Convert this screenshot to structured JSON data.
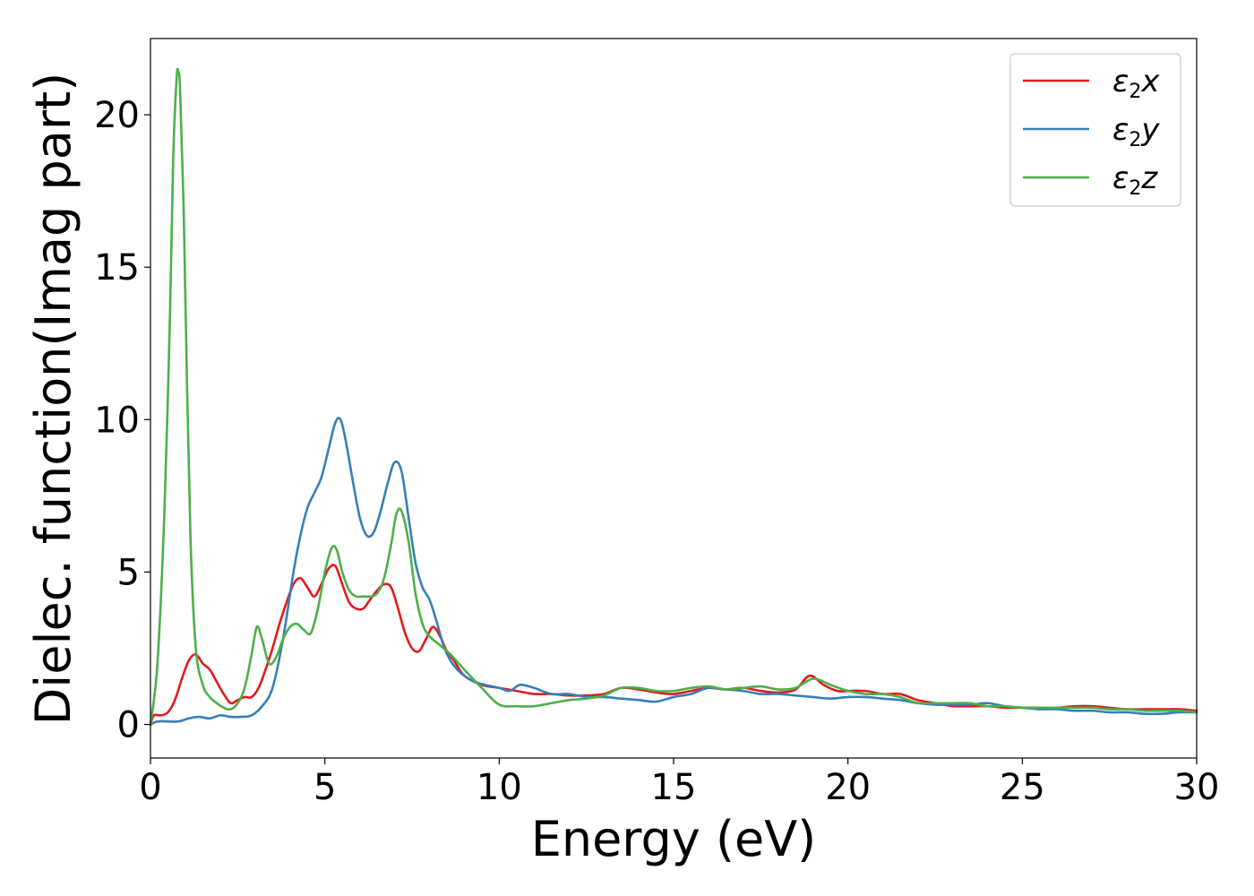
{
  "chart_data": {
    "type": "line",
    "xlabel": "Energy (eV)",
    "ylabel": "Dielec. function(Imag part)",
    "xlim": [
      0,
      30
    ],
    "ylim": [
      -1.1,
      22.5
    ],
    "xticks": [
      0,
      5,
      10,
      15,
      20,
      25,
      30
    ],
    "yticks": [
      0,
      5,
      10,
      15,
      20
    ],
    "grid": false,
    "legend_position": "top-right",
    "series": [
      {
        "name": "ε2x",
        "legend_main": "ε",
        "legend_sub": "2",
        "legend_suffix": "x",
        "color": "#e31a1c",
        "x": [
          0,
          0.1,
          0.3,
          0.5,
          0.7,
          0.9,
          1.1,
          1.3,
          1.5,
          1.7,
          1.9,
          2.1,
          2.3,
          2.5,
          2.7,
          2.9,
          3.1,
          3.3,
          3.5,
          3.7,
          3.9,
          4.1,
          4.3,
          4.5,
          4.7,
          4.9,
          5.1,
          5.3,
          5.5,
          5.7,
          5.9,
          6.1,
          6.3,
          6.5,
          6.7,
          6.9,
          7.1,
          7.3,
          7.5,
          7.7,
          7.9,
          8.1,
          8.3,
          8.5,
          8.7,
          9.0,
          9.5,
          10.0,
          10.5,
          11.0,
          11.5,
          12.0,
          12.5,
          13.0,
          13.5,
          14.0,
          14.5,
          15.0,
          15.5,
          16.0,
          16.5,
          17.0,
          17.5,
          18.0,
          18.5,
          18.9,
          19.3,
          19.7,
          20.0,
          20.5,
          21.0,
          21.5,
          22.0,
          22.5,
          23.0,
          23.5,
          24.0,
          24.5,
          25.0,
          25.5,
          26.0,
          26.5,
          27.0,
          27.5,
          28.0,
          28.5,
          29.0,
          29.5,
          30.0
        ],
        "y": [
          0.0,
          0.3,
          0.3,
          0.4,
          0.8,
          1.5,
          2.1,
          2.3,
          2.0,
          1.8,
          1.4,
          1.0,
          0.7,
          0.8,
          0.9,
          0.9,
          1.2,
          1.8,
          2.5,
          3.3,
          4.0,
          4.6,
          4.8,
          4.5,
          4.2,
          4.6,
          5.1,
          5.2,
          4.6,
          4.0,
          3.8,
          3.8,
          4.1,
          4.4,
          4.6,
          4.5,
          3.8,
          3.0,
          2.5,
          2.4,
          2.8,
          3.2,
          2.9,
          2.4,
          2.1,
          1.6,
          1.3,
          1.2,
          1.1,
          1.0,
          1.0,
          0.95,
          0.95,
          1.0,
          1.2,
          1.15,
          1.05,
          1.0,
          1.1,
          1.2,
          1.15,
          1.2,
          1.1,
          1.05,
          1.15,
          1.6,
          1.3,
          1.1,
          1.1,
          1.1,
          1.0,
          1.0,
          0.8,
          0.7,
          0.6,
          0.6,
          0.6,
          0.55,
          0.55,
          0.55,
          0.55,
          0.6,
          0.6,
          0.55,
          0.5,
          0.5,
          0.5,
          0.5,
          0.45
        ]
      },
      {
        "name": "ε2y",
        "legend_main": "ε",
        "legend_sub": "2",
        "legend_suffix": "y",
        "color": "#377eb8",
        "x": [
          0,
          0.2,
          0.5,
          0.8,
          1.1,
          1.4,
          1.7,
          2.0,
          2.3,
          2.6,
          2.9,
          3.2,
          3.5,
          3.8,
          4.1,
          4.3,
          4.5,
          4.7,
          4.9,
          5.1,
          5.3,
          5.45,
          5.6,
          5.8,
          6.0,
          6.2,
          6.4,
          6.6,
          6.8,
          7.0,
          7.2,
          7.4,
          7.6,
          7.8,
          8.0,
          8.2,
          8.4,
          8.6,
          8.8,
          9.0,
          9.3,
          9.6,
          10.0,
          10.3,
          10.6,
          11.0,
          11.5,
          12.0,
          12.5,
          13.0,
          13.5,
          14.0,
          14.5,
          15.0,
          15.5,
          16.0,
          16.5,
          17.0,
          17.5,
          18.0,
          18.5,
          19.0,
          19.5,
          20.0,
          20.5,
          21.0,
          21.5,
          22.0,
          22.5,
          23.0,
          23.5,
          24.0,
          24.5,
          25.0,
          25.5,
          26.0,
          26.5,
          27.0,
          27.5,
          28.0,
          28.5,
          29.0,
          29.5,
          30.0
        ],
        "y": [
          0.0,
          0.1,
          0.1,
          0.1,
          0.2,
          0.25,
          0.2,
          0.3,
          0.25,
          0.25,
          0.3,
          0.6,
          1.2,
          2.8,
          5.0,
          6.2,
          7.1,
          7.6,
          8.1,
          9.0,
          9.9,
          10.0,
          9.3,
          8.0,
          6.8,
          6.2,
          6.3,
          7.0,
          7.9,
          8.6,
          8.3,
          6.8,
          5.3,
          4.5,
          4.1,
          3.4,
          2.6,
          2.1,
          1.8,
          1.6,
          1.4,
          1.3,
          1.2,
          1.1,
          1.3,
          1.2,
          1.0,
          1.0,
          0.9,
          0.9,
          0.85,
          0.8,
          0.75,
          0.9,
          1.0,
          1.2,
          1.15,
          1.1,
          1.0,
          1.0,
          0.95,
          0.9,
          0.85,
          0.9,
          0.9,
          0.85,
          0.8,
          0.7,
          0.65,
          0.65,
          0.65,
          0.7,
          0.6,
          0.55,
          0.5,
          0.5,
          0.45,
          0.45,
          0.4,
          0.4,
          0.35,
          0.35,
          0.4,
          0.4
        ]
      },
      {
        "name": "ε2z",
        "legend_main": "ε",
        "legend_sub": "2",
        "legend_suffix": "z",
        "color": "#4daf4a",
        "x": [
          0,
          0.2,
          0.4,
          0.55,
          0.65,
          0.75,
          0.8,
          0.85,
          0.95,
          1.05,
          1.15,
          1.3,
          1.5,
          1.7,
          1.9,
          2.1,
          2.3,
          2.5,
          2.7,
          2.9,
          3.05,
          3.2,
          3.4,
          3.6,
          3.8,
          4.0,
          4.2,
          4.4,
          4.6,
          4.8,
          5.0,
          5.2,
          5.35,
          5.5,
          5.7,
          5.9,
          6.1,
          6.3,
          6.5,
          6.7,
          6.9,
          7.05,
          7.2,
          7.4,
          7.6,
          7.8,
          8.0,
          8.3,
          8.6,
          9.0,
          9.5,
          10.0,
          10.5,
          11.0,
          11.5,
          12.0,
          12.5,
          13.0,
          13.5,
          14.0,
          14.5,
          15.0,
          15.5,
          16.0,
          16.5,
          17.0,
          17.5,
          18.0,
          18.5,
          19.0,
          19.5,
          20.0,
          20.5,
          21.0,
          21.5,
          22.0,
          22.5,
          23.0,
          23.5,
          24.0,
          24.5,
          25.0,
          25.5,
          26.0,
          26.5,
          27.0,
          27.5,
          28.0,
          28.5,
          29.0,
          29.5,
          30.0
        ],
        "y": [
          0.0,
          2.0,
          7.0,
          13.0,
          18.5,
          21.2,
          21.4,
          20.8,
          17.0,
          11.0,
          6.0,
          2.5,
          1.3,
          0.9,
          0.7,
          0.55,
          0.5,
          0.7,
          1.2,
          2.3,
          3.2,
          2.8,
          2.0,
          2.2,
          2.8,
          3.2,
          3.3,
          3.1,
          3.0,
          3.8,
          5.0,
          5.8,
          5.7,
          5.0,
          4.4,
          4.2,
          4.2,
          4.2,
          4.3,
          4.8,
          5.9,
          6.9,
          7.0,
          6.0,
          4.3,
          3.3,
          2.9,
          2.6,
          2.3,
          1.8,
          1.2,
          0.65,
          0.6,
          0.6,
          0.7,
          0.8,
          0.85,
          0.95,
          1.2,
          1.2,
          1.1,
          1.1,
          1.2,
          1.25,
          1.15,
          1.2,
          1.25,
          1.15,
          1.2,
          1.5,
          1.3,
          1.1,
          1.0,
          1.0,
          0.9,
          0.7,
          0.7,
          0.7,
          0.7,
          0.6,
          0.6,
          0.55,
          0.55,
          0.55,
          0.55,
          0.55,
          0.5,
          0.5,
          0.45,
          0.45,
          0.45,
          0.4
        ]
      }
    ]
  }
}
